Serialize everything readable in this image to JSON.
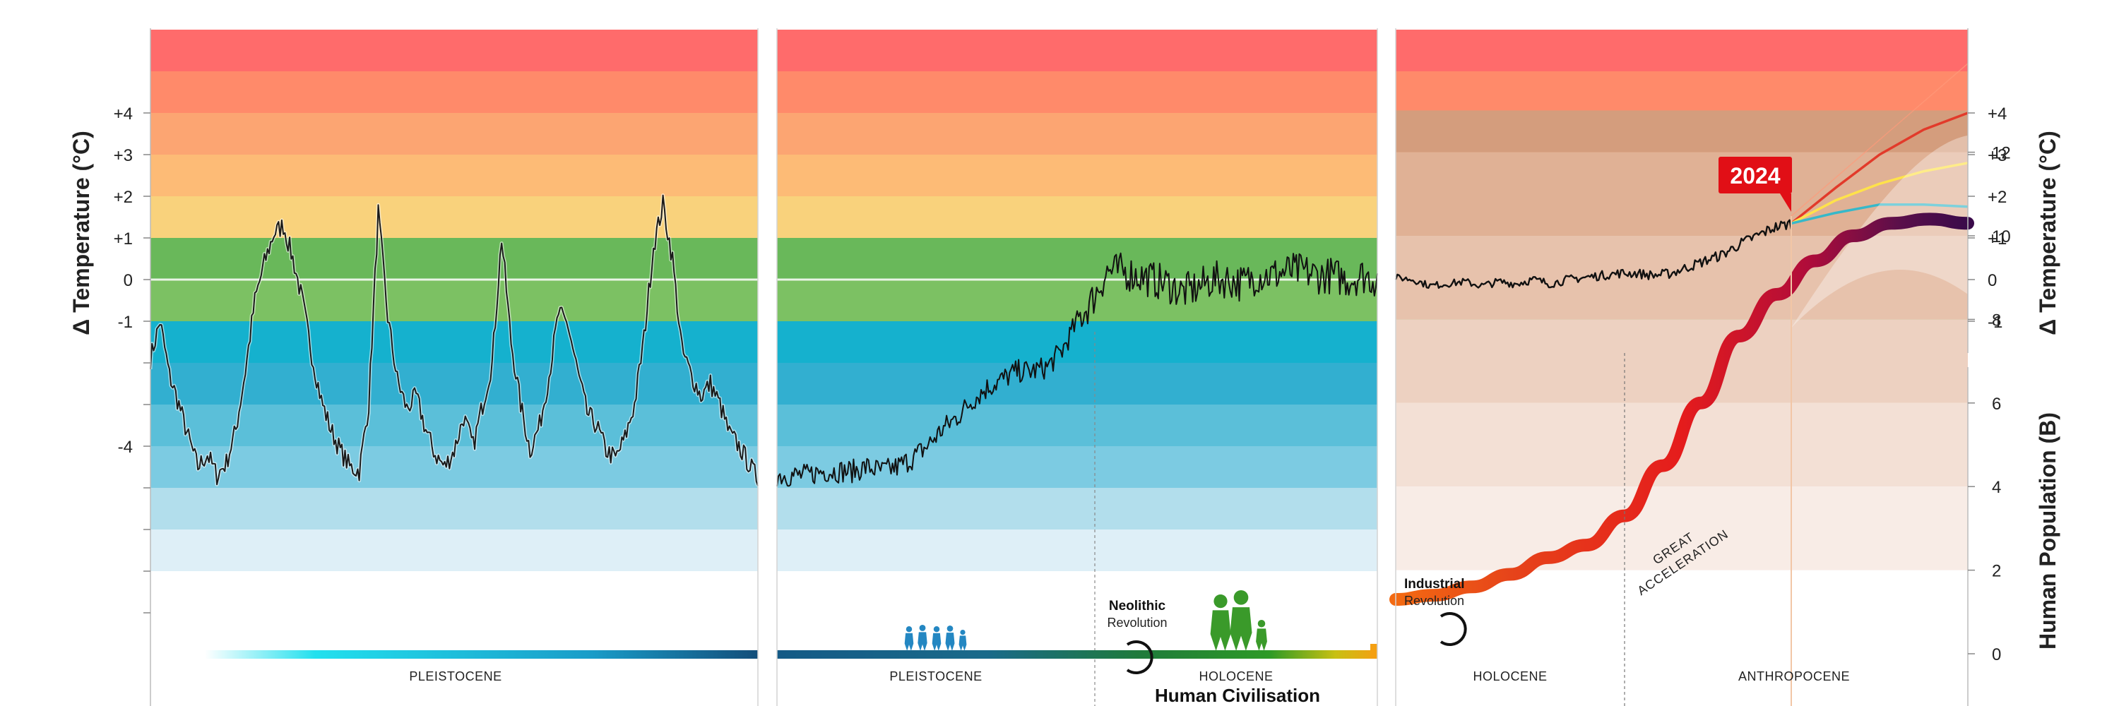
{
  "chart_data": [
    {
      "type": "line",
      "panel": "left",
      "ylabel": "Δ Temperature (°C)",
      "ylim": [
        -7,
        6
      ],
      "ytick_labels": [
        {
          "v": 4,
          "label": "+4"
        },
        {
          "v": 3,
          "label": "+3"
        },
        {
          "v": 2,
          "label": "+2"
        },
        {
          "v": 1,
          "label": "+1"
        },
        {
          "v": 0,
          "label": "0"
        },
        {
          "v": -1,
          "label": "-1"
        },
        {
          "v": -4,
          "label": "-4"
        }
      ],
      "epoch_label": "PLEISTOCENE",
      "series": [
        {
          "values": [
            -1.9,
            -1.0,
            -2.3,
            -3.0,
            -3.8,
            -4.5,
            -4.2,
            -4.7,
            -4.4,
            -3.6,
            -2.2,
            -0.5,
            0.4,
            1.1,
            1.3,
            0.5,
            -0.5,
            -1.8,
            -2.9,
            -3.6,
            -4.1,
            -4.5,
            -4.6,
            -3.0,
            1.6,
            -0.9,
            -2.4,
            -3.1,
            -2.8,
            -3.6,
            -4.2,
            -4.5,
            -4.1,
            -3.3,
            -4.0,
            -3.0,
            -2.0,
            1.0,
            -1.5,
            -3.0,
            -4.1,
            -3.5,
            -2.3,
            -0.8,
            -1.1,
            -2.2,
            -3.2,
            -3.5,
            -4.1,
            -4.3,
            -3.8,
            -3.0,
            -1.4,
            0.8,
            1.8,
            0.5,
            -1.7,
            -2.3,
            -2.8,
            -2.5,
            -3.0,
            -3.7,
            -4.0,
            -4.4,
            -4.8
          ]
        }
      ]
    },
    {
      "type": "line",
      "panel": "middle",
      "ylim": [
        -7,
        6
      ],
      "epoch_labels": [
        "PLEISTOCENE",
        "HOLOCENE"
      ],
      "event": {
        "bold": "Neolithic",
        "regular": "Revolution"
      },
      "caption": "Human Civilisation",
      "series": [
        {
          "values": [
            -4.7,
            -4.7,
            -4.7,
            -4.6,
            -4.6,
            -4.6,
            -4.5,
            -4.6,
            -4.5,
            -4.3,
            -4.0,
            -3.6,
            -3.3,
            -2.9,
            -2.6,
            -2.4,
            -2.2,
            -2.2,
            -2.1,
            -1.7,
            -1.0,
            -0.5,
            0.2,
            0.2,
            0.1,
            0.0,
            -0.1,
            -0.3,
            -0.2,
            0.0,
            0.0,
            -0.1,
            0.1,
            0.1,
            0.2,
            0.2,
            0.1,
            0.1,
            0.0,
            0.1,
            0.0
          ]
        }
      ]
    },
    {
      "type": "line",
      "panel": "right-top",
      "ylabel": "Δ Temperature (°C)",
      "ylim": [
        -2,
        6
      ],
      "ytick_labels": [
        {
          "v": 4,
          "label": "+4"
        },
        {
          "v": 3,
          "label": "+3"
        },
        {
          "v": 2,
          "label": "+2"
        },
        {
          "v": 1,
          "label": "+1"
        },
        {
          "v": 0,
          "label": "0"
        },
        {
          "v": -1,
          "label": "-1"
        }
      ],
      "marker": "2024",
      "series": [
        {
          "values": [
            0.05,
            0.0,
            -0.15,
            -0.1,
            -0.05,
            -0.15,
            -0.05,
            -0.1,
            0.0,
            -0.1,
            0.0,
            0.05,
            0.1,
            0.15,
            0.15,
            0.1,
            0.15,
            0.3,
            0.45,
            0.6,
            0.85,
            1.05,
            1.25,
            1.35
          ]
        },
        {
          "values": [
            1.35,
            2.2,
            3.0,
            3.6,
            4.0
          ]
        },
        {
          "values": [
            1.35,
            1.9,
            2.3,
            2.6,
            2.8
          ]
        },
        {
          "values": [
            1.35,
            1.6,
            1.8,
            1.8,
            1.75
          ]
        }
      ]
    },
    {
      "type": "line",
      "panel": "right-bottom",
      "ylabel": "Human Population (B)",
      "ylim": [
        -1,
        13
      ],
      "yticks": [
        0,
        2,
        4,
        6,
        8,
        10,
        12
      ],
      "epoch_labels": [
        "HOLOCENE",
        "ANTHROPOCENE"
      ],
      "event": {
        "bold": "Industrial",
        "regular": "Revolution"
      },
      "annotation": [
        "GREAT",
        "ACCELERATION"
      ],
      "series": [
        {
          "values": [
            1.3,
            1.4,
            1.6,
            1.9,
            2.3,
            2.6,
            3.3,
            4.5,
            6.0,
            7.6,
            8.6,
            9.4,
            10.0,
            10.3,
            10.4,
            10.3
          ]
        }
      ]
    }
  ]
}
